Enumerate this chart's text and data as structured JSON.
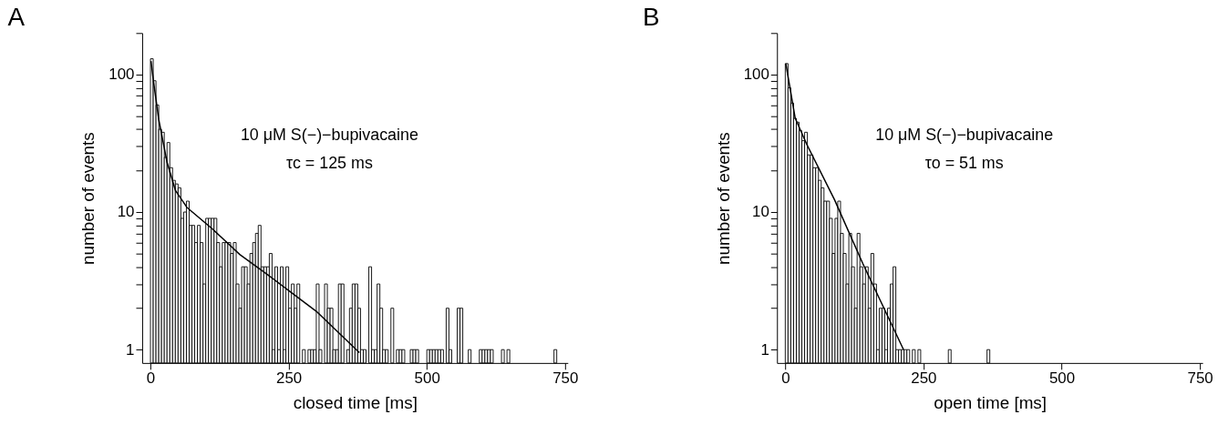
{
  "chart_data": [
    {
      "type": "histogram",
      "title": "A",
      "xlabel": "closed time [ms]",
      "ylabel": "number of events",
      "color": "#ffffff",
      "log": true,
      "grid": false,
      "legend": false,
      "bins": [
        0,
        5,
        10,
        15,
        20,
        25,
        30,
        35,
        40,
        45,
        50,
        55,
        60,
        65,
        70,
        75,
        80,
        85,
        90,
        95,
        100,
        105,
        110,
        115,
        120,
        125,
        130,
        135,
        140,
        145,
        150,
        155,
        160,
        165,
        170,
        175,
        180,
        185,
        190,
        195,
        200,
        205,
        210,
        215,
        220,
        225,
        230,
        235,
        240,
        245,
        250,
        255,
        260,
        265,
        270,
        275,
        280,
        285,
        290,
        295,
        300,
        305,
        310,
        315,
        320,
        325,
        330,
        335,
        340,
        345,
        350,
        355,
        360,
        365,
        370,
        375,
        380,
        385,
        390,
        395,
        400,
        405,
        410,
        415,
        420,
        425,
        430,
        435,
        440,
        445,
        450,
        455,
        460,
        465,
        470,
        475,
        480,
        485,
        490,
        495,
        500,
        505,
        510,
        515,
        520,
        525,
        530,
        535,
        540,
        545,
        550,
        555,
        560,
        565,
        570,
        575,
        580,
        585,
        590,
        595,
        600,
        605,
        610,
        615,
        620,
        625,
        630,
        635,
        640,
        645,
        650,
        655,
        660,
        665,
        670,
        675,
        680,
        685,
        690,
        695,
        700,
        705,
        710,
        715,
        720,
        725,
        730,
        735
      ],
      "values": [
        130,
        90,
        60,
        40,
        38,
        25,
        32,
        21,
        17,
        16,
        15,
        9,
        10,
        12,
        8,
        8,
        6,
        8,
        6,
        3,
        9,
        9,
        9,
        9,
        6,
        4,
        6,
        6,
        6,
        5,
        6,
        3,
        2,
        4,
        4,
        3,
        5,
        6,
        7,
        8,
        4,
        4,
        4,
        5,
        1,
        4,
        1,
        4,
        1,
        4,
        2,
        3,
        2,
        3,
        null,
        1,
        null,
        1,
        1,
        1,
        3,
        1,
        null,
        3,
        2,
        2,
        1,
        1,
        3,
        3,
        null,
        1,
        2,
        3,
        3,
        2,
        1,
        1,
        null,
        4,
        1,
        1,
        3,
        2,
        1,
        1,
        null,
        2,
        null,
        1,
        1,
        1,
        null,
        null,
        1,
        1,
        1,
        null,
        null,
        null,
        1,
        1,
        1,
        1,
        1,
        1,
        null,
        2,
        1,
        null,
        null,
        2,
        2,
        null,
        null,
        1,
        null,
        null,
        null,
        1,
        1,
        1,
        1,
        1,
        null,
        null,
        null,
        1,
        null,
        1,
        null,
        null,
        null,
        null,
        null,
        null,
        null,
        null,
        null,
        null,
        null,
        null,
        null,
        null,
        null,
        null,
        1
      ],
      "series": [
        {
          "type": "line",
          "color": "#000000",
          "x": [
            1,
            5,
            15,
            30,
            45,
            66,
            111,
            162,
            212,
            300,
            378
          ],
          "values": [
            125,
            92,
            47,
            23,
            14.4,
            10.8,
            7.6,
            4.9,
            3.5,
            1.9,
            0.95
          ]
        }
      ],
      "xlim": [
        -15,
        755
      ],
      "xticks": [
        0,
        250,
        500,
        750
      ],
      "ylim": [
        0.8,
        200
      ],
      "yticks": [
        1,
        {
          "value": 2,
          "label": null
        },
        {
          "value": 3,
          "label": null
        },
        {
          "value": 4,
          "label": null
        },
        {
          "value": 5,
          "label": null
        },
        {
          "value": 6,
          "label": null
        },
        {
          "value": 7,
          "label": null
        },
        {
          "value": 8,
          "label": null
        },
        {
          "value": 9,
          "label": null
        },
        10,
        {
          "value": 20,
          "label": null
        },
        {
          "value": 30,
          "label": null
        },
        {
          "value": 40,
          "label": null
        },
        {
          "value": 50,
          "label": null
        },
        {
          "value": 60,
          "label": null
        },
        {
          "value": 70,
          "label": null
        },
        {
          "value": 80,
          "label": null
        },
        {
          "value": 90,
          "label": null
        },
        100,
        {
          "value": 200,
          "label": null
        }
      ],
      "annotations": [
        "10 μM S(−)−bupivacaine",
        "τc = 125 ms"
      ]
    },
    {
      "type": "histogram",
      "title": "B",
      "xlabel": "open time [ms]",
      "ylabel": "number of events",
      "color": "#ffffff",
      "log": true,
      "grid": false,
      "legend": false,
      "bins": [
        0,
        5,
        10,
        15,
        20,
        25,
        30,
        35,
        40,
        45,
        50,
        55,
        60,
        65,
        70,
        75,
        80,
        85,
        90,
        95,
        100,
        105,
        110,
        115,
        120,
        125,
        130,
        135,
        140,
        145,
        150,
        155,
        160,
        165,
        170,
        175,
        180,
        185,
        190,
        195,
        200,
        205,
        210,
        215,
        220,
        225,
        230,
        235,
        240,
        245,
        250,
        255,
        260,
        265,
        270,
        275,
        280,
        285,
        290,
        295,
        300,
        305,
        310,
        315,
        320,
        325,
        330,
        335,
        340,
        345,
        350,
        355,
        360,
        365,
        370
      ],
      "values": [
        120,
        80,
        62,
        48,
        45,
        39,
        33,
        38,
        26,
        26,
        21,
        21,
        17,
        15,
        12,
        12,
        9,
        5,
        9,
        12,
        7,
        5,
        3,
        7,
        4,
        2,
        7,
        4,
        3,
        4,
        2,
        5,
        3,
        1,
        2,
        2,
        1,
        2,
        3,
        4,
        1,
        1,
        1,
        1,
        1,
        null,
        1,
        null,
        1,
        null,
        null,
        null,
        null,
        null,
        null,
        null,
        null,
        null,
        null,
        1,
        null,
        null,
        null,
        null,
        null,
        null,
        null,
        null,
        null,
        null,
        null,
        null,
        null,
        1
      ],
      "series": [
        {
          "type": "line",
          "color": "#000000",
          "x": [
            1,
            18,
            39,
            89,
            140,
            214
          ],
          "values": [
            120,
            48,
            31,
            12.3,
            4.25,
            1
          ]
        }
      ],
      "xlim": [
        -15,
        755
      ],
      "xticks": [
        0,
        250,
        500,
        750
      ],
      "ylim": [
        0.8,
        200
      ],
      "yticks": [
        1,
        {
          "value": 2,
          "label": null
        },
        {
          "value": 3,
          "label": null
        },
        {
          "value": 4,
          "label": null
        },
        {
          "value": 5,
          "label": null
        },
        {
          "value": 6,
          "label": null
        },
        {
          "value": 7,
          "label": null
        },
        {
          "value": 8,
          "label": null
        },
        {
          "value": 9,
          "label": null
        },
        10,
        {
          "value": 20,
          "label": null
        },
        {
          "value": 30,
          "label": null
        },
        {
          "value": 40,
          "label": null
        },
        {
          "value": 50,
          "label": null
        },
        {
          "value": 60,
          "label": null
        },
        {
          "value": 70,
          "label": null
        },
        {
          "value": 80,
          "label": null
        },
        {
          "value": 90,
          "label": null
        },
        100,
        {
          "value": 200,
          "label": null
        }
      ],
      "annotations": [
        "10 μM S(−)−bupivacaine",
        "τo = 51 ms"
      ]
    }
  ]
}
